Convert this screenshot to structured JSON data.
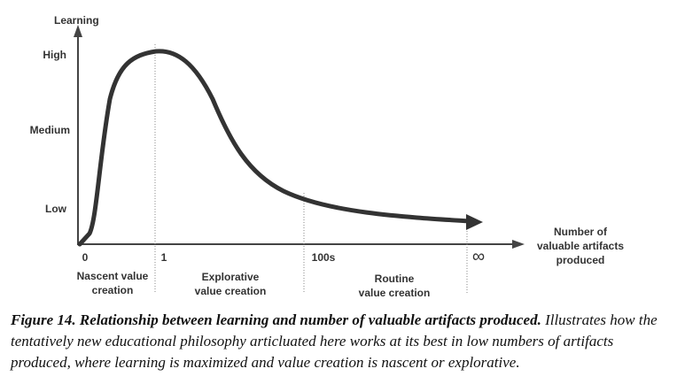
{
  "figure": {
    "y_axis_title": "Learning",
    "y_levels": [
      "High",
      "Medium",
      "Low"
    ],
    "x_axis_title": [
      "Number of",
      "valuable artifacts",
      "produced"
    ],
    "x_marks": [
      "0",
      "1",
      "100s",
      "∞"
    ],
    "phases": [
      [
        "Nascent value",
        "creation"
      ],
      [
        "Explorative",
        "value creation"
      ],
      [
        "Routine",
        "value creation"
      ]
    ]
  },
  "caption": {
    "label": "Figure 14. Relationship between learning and number of valuable artifacts produced.",
    "text": "Illustrates how the tentatively new educational philosophy articluated here works at its best in low numbers of artifacts produced, where learning is maximized and value creation is nascent or explorative."
  }
}
